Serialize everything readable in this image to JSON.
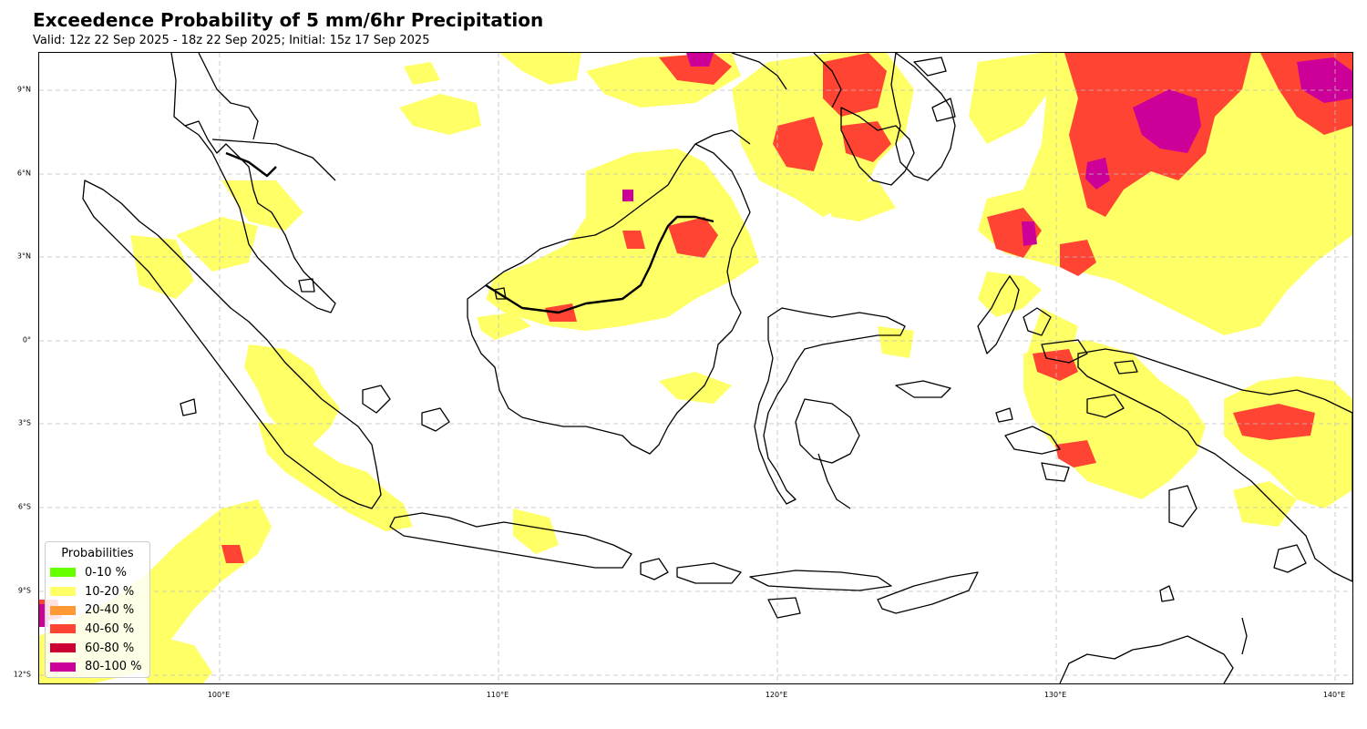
{
  "title": "Exceedence Probability of 5 mm/6hr Precipitation",
  "subtitle": "Valid: 12z 22 Sep 2025 - 18z 22 Sep 2025; Initial: 15z 17 Sep 2025",
  "map": {
    "extent": {
      "lon_min": 93.5,
      "lon_max": 140.7,
      "lat_min": -12.5,
      "lat_max": 10.3
    },
    "lat_labels": [
      "9°N",
      "6°N",
      "3°N",
      "0°",
      "3°S",
      "6°S",
      "9°S",
      "12°S"
    ],
    "lon_labels": [
      "100°E",
      "110°E",
      "120°E",
      "130°E",
      "140°E"
    ],
    "gridlines": true,
    "background": "#ffffff",
    "coastline_color": "#000000"
  },
  "legend": {
    "title": "Probabilities",
    "placement": "lower-left",
    "items": [
      {
        "label": "0-10 %",
        "color": "#66ff00"
      },
      {
        "label": "10-20 %",
        "color": "#ffff66"
      },
      {
        "label": "20-40 %",
        "color": "#ff9933"
      },
      {
        "label": "40-60 %",
        "color": "#ff4433"
      },
      {
        "label": "60-80 %",
        "color": "#cc0033"
      },
      {
        "label": "80-100 %",
        "color": "#cc0099"
      }
    ]
  }
}
